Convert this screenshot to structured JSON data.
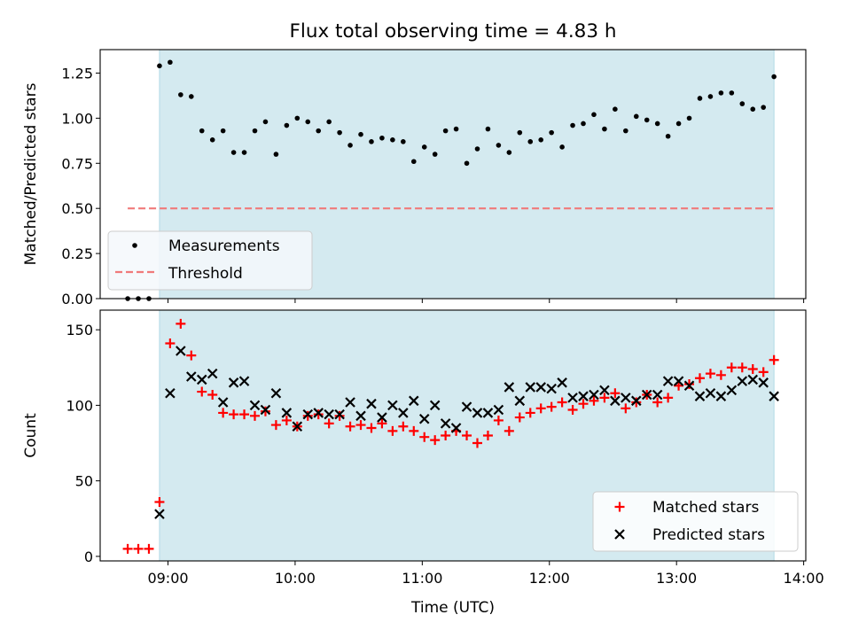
{
  "title": "Flux total observing time = 4.83 h",
  "colors": {
    "shade": "#d4eaf0",
    "shade_edge": "#b2dae6",
    "threshold": "#f07a7a",
    "measurement": "#000000",
    "matched": "#ff0000",
    "predicted": "#000000",
    "legend_bg": "#f5f8fb"
  },
  "chart_data": [
    {
      "type": "scatter",
      "ylabel": "Matched/Predicted stars",
      "xlabel": "",
      "xlim": [
        "08:28",
        "14:01"
      ],
      "ylim": [
        0,
        1.38
      ],
      "yticks": [
        0.0,
        0.25,
        0.5,
        0.75,
        1.0,
        1.25
      ],
      "ytick_labels": [
        "0.00",
        "0.25",
        "0.50",
        "0.75",
        "1.00",
        "1.25"
      ],
      "shaded_span": [
        "08:56",
        "13:46"
      ],
      "legend": {
        "placement": "lower-left",
        "entries": [
          "Measurements",
          "Threshold"
        ]
      },
      "threshold": {
        "name": "Threshold",
        "value": 0.5,
        "x": [
          "08:41",
          "13:46"
        ]
      },
      "series": [
        {
          "name": "Measurements",
          "marker": "dot",
          "x": [
            "08:41",
            "08:46",
            "08:51",
            "08:56",
            "09:01",
            "09:06",
            "09:11",
            "09:16",
            "09:21",
            "09:26",
            "09:31",
            "09:36",
            "09:41",
            "09:46",
            "09:51",
            "09:56",
            "10:01",
            "10:06",
            "10:11",
            "10:16",
            "10:21",
            "10:26",
            "10:31",
            "10:36",
            "10:41",
            "10:46",
            "10:51",
            "10:56",
            "11:01",
            "11:06",
            "11:11",
            "11:16",
            "11:21",
            "11:26",
            "11:31",
            "11:36",
            "11:41",
            "11:46",
            "11:51",
            "11:56",
            "12:01",
            "12:06",
            "12:11",
            "12:16",
            "12:21",
            "12:26",
            "12:31",
            "12:36",
            "12:41",
            "12:46",
            "12:51",
            "12:56",
            "13:01",
            "13:06",
            "13:11",
            "13:16",
            "13:21",
            "13:26",
            "13:31",
            "13:36",
            "13:41",
            "13:46"
          ],
          "y": [
            0.0,
            0.0,
            0.0,
            1.29,
            1.31,
            1.13,
            1.12,
            0.93,
            0.88,
            0.93,
            0.81,
            0.81,
            0.93,
            0.98,
            0.8,
            0.96,
            1.0,
            0.98,
            0.93,
            0.98,
            0.92,
            0.85,
            0.91,
            0.87,
            0.89,
            0.88,
            0.87,
            0.76,
            0.84,
            0.8,
            0.93,
            0.94,
            0.75,
            0.83,
            0.94,
            0.85,
            0.81,
            0.92,
            0.87,
            0.88,
            0.92,
            0.84,
            0.96,
            0.97,
            1.02,
            0.94,
            1.05,
            0.93,
            1.01,
            0.99,
            0.97,
            0.9,
            0.97,
            1.0,
            1.11,
            1.12,
            1.14,
            1.14,
            1.08,
            1.05,
            1.06,
            1.23
          ]
        }
      ]
    },
    {
      "type": "scatter",
      "ylabel": "Count",
      "xlabel": "Time (UTC)",
      "xlim": [
        "08:28",
        "14:01"
      ],
      "ylim": [
        -3,
        163
      ],
      "yticks": [
        0,
        50,
        100,
        150
      ],
      "ytick_labels": [
        "0",
        "50",
        "100",
        "150"
      ],
      "xticks": [
        "09:00",
        "10:00",
        "11:00",
        "12:00",
        "13:00",
        "14:00"
      ],
      "xtick_labels": [
        "09:00",
        "10:00",
        "11:00",
        "12:00",
        "13:00",
        "14:00"
      ],
      "shaded_span": [
        "08:56",
        "13:46"
      ],
      "legend": {
        "placement": "lower-right",
        "entries": [
          "Matched stars",
          "Predicted stars"
        ]
      },
      "series": [
        {
          "name": "Matched stars",
          "marker": "plus",
          "x": [
            "08:41",
            "08:46",
            "08:51",
            "08:56",
            "09:01",
            "09:06",
            "09:11",
            "09:16",
            "09:21",
            "09:26",
            "09:31",
            "09:36",
            "09:41",
            "09:46",
            "09:51",
            "09:56",
            "10:01",
            "10:06",
            "10:11",
            "10:16",
            "10:21",
            "10:26",
            "10:31",
            "10:36",
            "10:41",
            "10:46",
            "10:51",
            "10:56",
            "11:01",
            "11:06",
            "11:11",
            "11:16",
            "11:21",
            "11:26",
            "11:31",
            "11:36",
            "11:41",
            "11:46",
            "11:51",
            "11:56",
            "12:01",
            "12:06",
            "12:11",
            "12:16",
            "12:21",
            "12:26",
            "12:31",
            "12:36",
            "12:41",
            "12:46",
            "12:51",
            "12:56",
            "13:01",
            "13:06",
            "13:11",
            "13:16",
            "13:21",
            "13:26",
            "13:31",
            "13:36",
            "13:41",
            "13:46"
          ],
          "y": [
            5,
            5,
            5,
            36,
            141,
            154,
            133,
            109,
            107,
            95,
            94,
            94,
            93,
            96,
            87,
            90,
            86,
            93,
            94,
            88,
            93,
            86,
            87,
            85,
            88,
            83,
            86,
            83,
            79,
            77,
            80,
            83,
            80,
            75,
            80,
            90,
            83,
            92,
            95,
            98,
            99,
            102,
            97,
            101,
            103,
            105,
            108,
            98,
            102,
            107,
            102,
            105,
            113,
            114,
            118,
            121,
            120,
            125,
            125,
            124,
            122,
            130
          ]
        },
        {
          "name": "Predicted stars",
          "marker": "x",
          "x": [
            "08:56",
            "09:01",
            "09:06",
            "09:11",
            "09:16",
            "09:21",
            "09:26",
            "09:31",
            "09:36",
            "09:41",
            "09:46",
            "09:51",
            "09:56",
            "10:01",
            "10:06",
            "10:11",
            "10:16",
            "10:21",
            "10:26",
            "10:31",
            "10:36",
            "10:41",
            "10:46",
            "10:51",
            "10:56",
            "11:01",
            "11:06",
            "11:11",
            "11:16",
            "11:21",
            "11:26",
            "11:31",
            "11:36",
            "11:41",
            "11:46",
            "11:51",
            "11:56",
            "12:01",
            "12:06",
            "12:11",
            "12:16",
            "12:21",
            "12:26",
            "12:31",
            "12:36",
            "12:41",
            "12:46",
            "12:51",
            "12:56",
            "13:01",
            "13:06",
            "13:11",
            "13:16",
            "13:21",
            "13:26",
            "13:31",
            "13:36",
            "13:41",
            "13:46"
          ],
          "y": [
            28,
            108,
            136,
            119,
            117,
            121,
            102,
            115,
            116,
            100,
            97,
            108,
            95,
            86,
            94,
            95,
            94,
            94,
            102,
            93,
            101,
            92,
            100,
            95,
            103,
            91,
            100,
            88,
            85,
            99,
            95,
            95,
            97,
            112,
            103,
            112,
            112,
            111,
            115,
            105,
            106,
            107,
            110,
            103,
            105,
            103,
            107,
            107,
            116,
            116,
            113,
            106,
            108,
            106,
            110,
            116,
            117,
            115,
            106
          ]
        }
      ]
    }
  ]
}
